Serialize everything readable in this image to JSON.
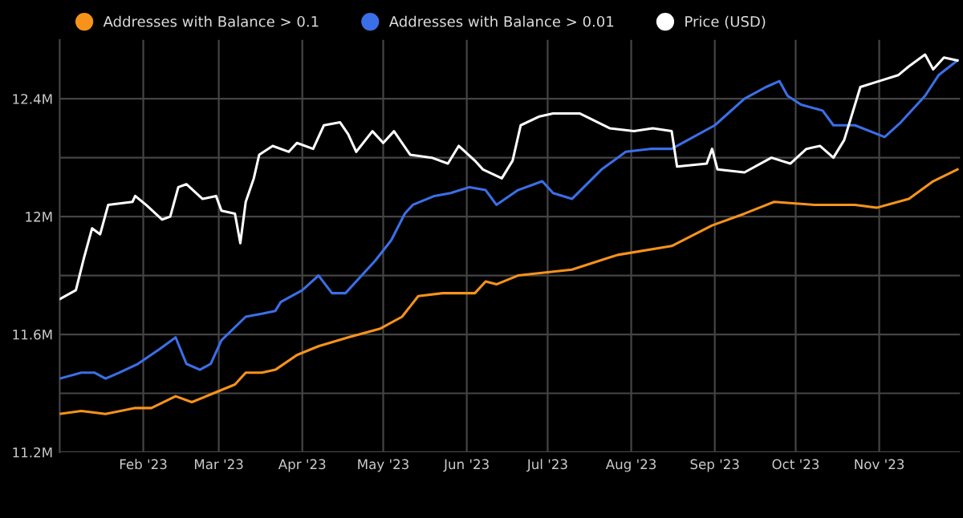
{
  "chart_data": {
    "type": "line",
    "xlim": [
      "2023-01-01",
      "2023-12-01"
    ],
    "xticks": [
      {
        "value": "2023-02-01",
        "label": "Feb '23"
      },
      {
        "value": "2023-03-01",
        "label": "Mar '23"
      },
      {
        "value": "2023-04-01",
        "label": "Apr '23"
      },
      {
        "value": "2023-05-01",
        "label": "May '23"
      },
      {
        "value": "2023-06-01",
        "label": "Jun '23"
      },
      {
        "value": "2023-07-01",
        "label": "Jul '23"
      },
      {
        "value": "2023-08-01",
        "label": "Aug '23"
      },
      {
        "value": "2023-09-01",
        "label": "Sep '23"
      },
      {
        "value": "2023-10-01",
        "label": "Oct '23"
      },
      {
        "value": "2023-11-01",
        "label": "Nov '23"
      }
    ],
    "ylim": [
      11.2,
      12.6
    ],
    "yticks": [
      {
        "value": 11.2,
        "label": "11.2M"
      },
      {
        "value": 11.4,
        "label": null
      },
      {
        "value": 11.6,
        "label": "11.6M"
      },
      {
        "value": 11.8,
        "label": null
      },
      {
        "value": 12.0,
        "label": "12M"
      },
      {
        "value": 12.2,
        "label": null
      },
      {
        "value": 12.4,
        "label": "12.4M"
      }
    ],
    "grid": true,
    "legend": "top left",
    "marker": "none",
    "line_style": "solid",
    "series": [
      {
        "name": "Addresses with Balance > 0.1",
        "color": "#f7931a",
        "x": [
          "2023-01-01",
          "2023-01-09",
          "2023-01-18",
          "2023-01-29",
          "2023-02-04",
          "2023-02-13",
          "2023-02-19",
          "2023-02-27",
          "2023-03-07",
          "2023-03-11",
          "2023-03-17",
          "2023-03-22",
          "2023-03-30",
          "2023-04-07",
          "2023-04-18",
          "2023-04-30",
          "2023-05-08",
          "2023-05-14",
          "2023-05-23",
          "2023-06-04",
          "2023-06-08",
          "2023-06-12",
          "2023-06-20",
          "2023-07-10",
          "2023-07-27",
          "2023-08-16",
          "2023-08-31",
          "2023-09-12",
          "2023-09-23",
          "2023-10-08",
          "2023-10-23",
          "2023-10-31",
          "2023-11-12",
          "2023-11-21",
          "2023-11-30"
        ],
        "values": [
          11.33,
          11.34,
          11.33,
          11.35,
          11.35,
          11.39,
          11.37,
          11.4,
          11.43,
          11.47,
          11.47,
          11.48,
          11.53,
          11.56,
          11.59,
          11.62,
          11.66,
          11.73,
          11.74,
          11.74,
          11.78,
          11.77,
          11.8,
          11.82,
          11.87,
          11.9,
          11.97,
          12.01,
          12.05,
          12.04,
          12.04,
          12.03,
          12.06,
          12.12,
          12.16
        ]
      },
      {
        "name": "Addresses with Balance > 0.01",
        "color": "#3b6fe8",
        "x": [
          "2023-01-01",
          "2023-01-09",
          "2023-01-14",
          "2023-01-18",
          "2023-01-23",
          "2023-01-30",
          "2023-02-07",
          "2023-02-13",
          "2023-02-17",
          "2023-02-22",
          "2023-02-26",
          "2023-03-02",
          "2023-03-11",
          "2023-03-17",
          "2023-03-22",
          "2023-03-24",
          "2023-04-01",
          "2023-04-07",
          "2023-04-12",
          "2023-04-17",
          "2023-04-22",
          "2023-04-28",
          "2023-05-04",
          "2023-05-09",
          "2023-05-12",
          "2023-05-20",
          "2023-05-26",
          "2023-06-02",
          "2023-06-08",
          "2023-06-12",
          "2023-06-20",
          "2023-06-29",
          "2023-07-03",
          "2023-07-10",
          "2023-07-21",
          "2023-07-30",
          "2023-08-08",
          "2023-08-16",
          "2023-08-22",
          "2023-09-01",
          "2023-09-12",
          "2023-09-20",
          "2023-09-25",
          "2023-09-28",
          "2023-10-03",
          "2023-10-11",
          "2023-10-15",
          "2023-10-23",
          "2023-11-03",
          "2023-11-09",
          "2023-11-18",
          "2023-11-23",
          "2023-11-30"
        ],
        "values": [
          11.45,
          11.47,
          11.47,
          11.45,
          11.47,
          11.5,
          11.55,
          11.59,
          11.5,
          11.48,
          11.5,
          11.58,
          11.66,
          11.67,
          11.68,
          11.71,
          11.75,
          11.8,
          11.74,
          11.74,
          11.79,
          11.85,
          11.92,
          12.01,
          12.04,
          12.07,
          12.08,
          12.1,
          12.09,
          12.04,
          12.09,
          12.12,
          12.08,
          12.06,
          12.16,
          12.22,
          12.23,
          12.23,
          12.26,
          12.31,
          12.4,
          12.44,
          12.46,
          12.41,
          12.38,
          12.36,
          12.31,
          12.31,
          12.27,
          12.32,
          12.41,
          12.48,
          12.53
        ]
      },
      {
        "name": "Price (USD)",
        "color": "#ffffff",
        "x": [
          "2023-01-01",
          "2023-01-07",
          "2023-01-10",
          "2023-01-13",
          "2023-01-16",
          "2023-01-19",
          "2023-01-28",
          "2023-01-29",
          "2023-02-02",
          "2023-02-08",
          "2023-02-11",
          "2023-02-14",
          "2023-02-17",
          "2023-02-23",
          "2023-02-28",
          "2023-03-02",
          "2023-03-07",
          "2023-03-09",
          "2023-03-11",
          "2023-03-14",
          "2023-03-16",
          "2023-03-21",
          "2023-03-27",
          "2023-03-30",
          "2023-04-05",
          "2023-04-09",
          "2023-04-15",
          "2023-04-18",
          "2023-04-21",
          "2023-04-27",
          "2023-05-01",
          "2023-05-05",
          "2023-05-11",
          "2023-05-19",
          "2023-05-25",
          "2023-05-29",
          "2023-06-04",
          "2023-06-07",
          "2023-06-14",
          "2023-06-18",
          "2023-06-21",
          "2023-06-28",
          "2023-07-03",
          "2023-07-13",
          "2023-07-24",
          "2023-08-02",
          "2023-08-09",
          "2023-08-16",
          "2023-08-18",
          "2023-08-29",
          "2023-08-31",
          "2023-09-02",
          "2023-09-12",
          "2023-09-22",
          "2023-09-29",
          "2023-10-05",
          "2023-10-10",
          "2023-10-15",
          "2023-10-19",
          "2023-10-25",
          "2023-11-01",
          "2023-11-08",
          "2023-11-12",
          "2023-11-18",
          "2023-11-21",
          "2023-11-25",
          "2023-11-30"
        ],
        "values": [
          11.72,
          11.75,
          11.86,
          11.96,
          11.94,
          12.04,
          12.05,
          12.07,
          12.04,
          11.99,
          12.0,
          12.1,
          12.11,
          12.06,
          12.07,
          12.02,
          12.01,
          11.91,
          12.05,
          12.13,
          12.21,
          12.24,
          12.22,
          12.25,
          12.23,
          12.31,
          12.32,
          12.28,
          12.22,
          12.29,
          12.25,
          12.29,
          12.21,
          12.2,
          12.18,
          12.24,
          12.19,
          12.16,
          12.13,
          12.19,
          12.31,
          12.34,
          12.35,
          12.35,
          12.3,
          12.29,
          12.3,
          12.29,
          12.17,
          12.18,
          12.23,
          12.16,
          12.15,
          12.2,
          12.18,
          12.23,
          12.24,
          12.2,
          12.26,
          12.44,
          12.46,
          12.48,
          12.51,
          12.55,
          12.5,
          12.54,
          12.53
        ]
      }
    ]
  }
}
